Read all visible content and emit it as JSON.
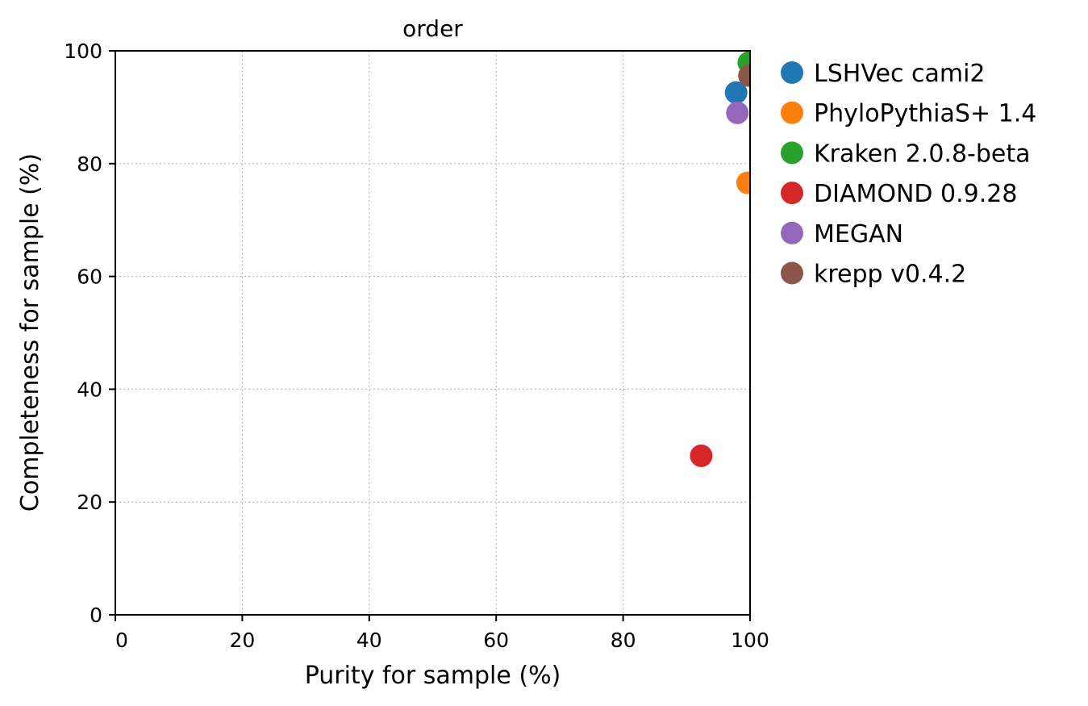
{
  "chart_data": {
    "type": "scatter",
    "title": "order",
    "xlabel": "Purity for sample (%)",
    "ylabel": "Completeness for sample (%)",
    "xlim": [
      0,
      100
    ],
    "ylim": [
      0,
      100
    ],
    "xticks": [
      "0",
      "20",
      "40",
      "60",
      "80",
      "100"
    ],
    "yticks": [
      "0",
      "20",
      "40",
      "60",
      "80",
      "100"
    ],
    "grid": true,
    "legend_position": "outside-right",
    "series": [
      {
        "name": "LSHVec cami2",
        "color": "#1f77b4",
        "points": [
          {
            "x": 97.8,
            "y": 92.6
          }
        ]
      },
      {
        "name": "PhyloPythiaS+ 1.4",
        "color": "#ff7f0e",
        "points": [
          {
            "x": 99.6,
            "y": 76.6
          }
        ]
      },
      {
        "name": "Kraken 2.0.8-beta",
        "color": "#2ca02c",
        "points": [
          {
            "x": 99.8,
            "y": 97.9
          }
        ]
      },
      {
        "name": "DIAMOND 0.9.28",
        "color": "#d62728",
        "points": [
          {
            "x": 92.3,
            "y": 28.2
          }
        ]
      },
      {
        "name": "MEGAN",
        "color": "#9467bd",
        "points": [
          {
            "x": 98.0,
            "y": 89.0
          }
        ]
      },
      {
        "name": "krepp v0.4.2",
        "color": "#8c564b",
        "points": [
          {
            "x": 99.9,
            "y": 95.6
          }
        ]
      }
    ]
  }
}
